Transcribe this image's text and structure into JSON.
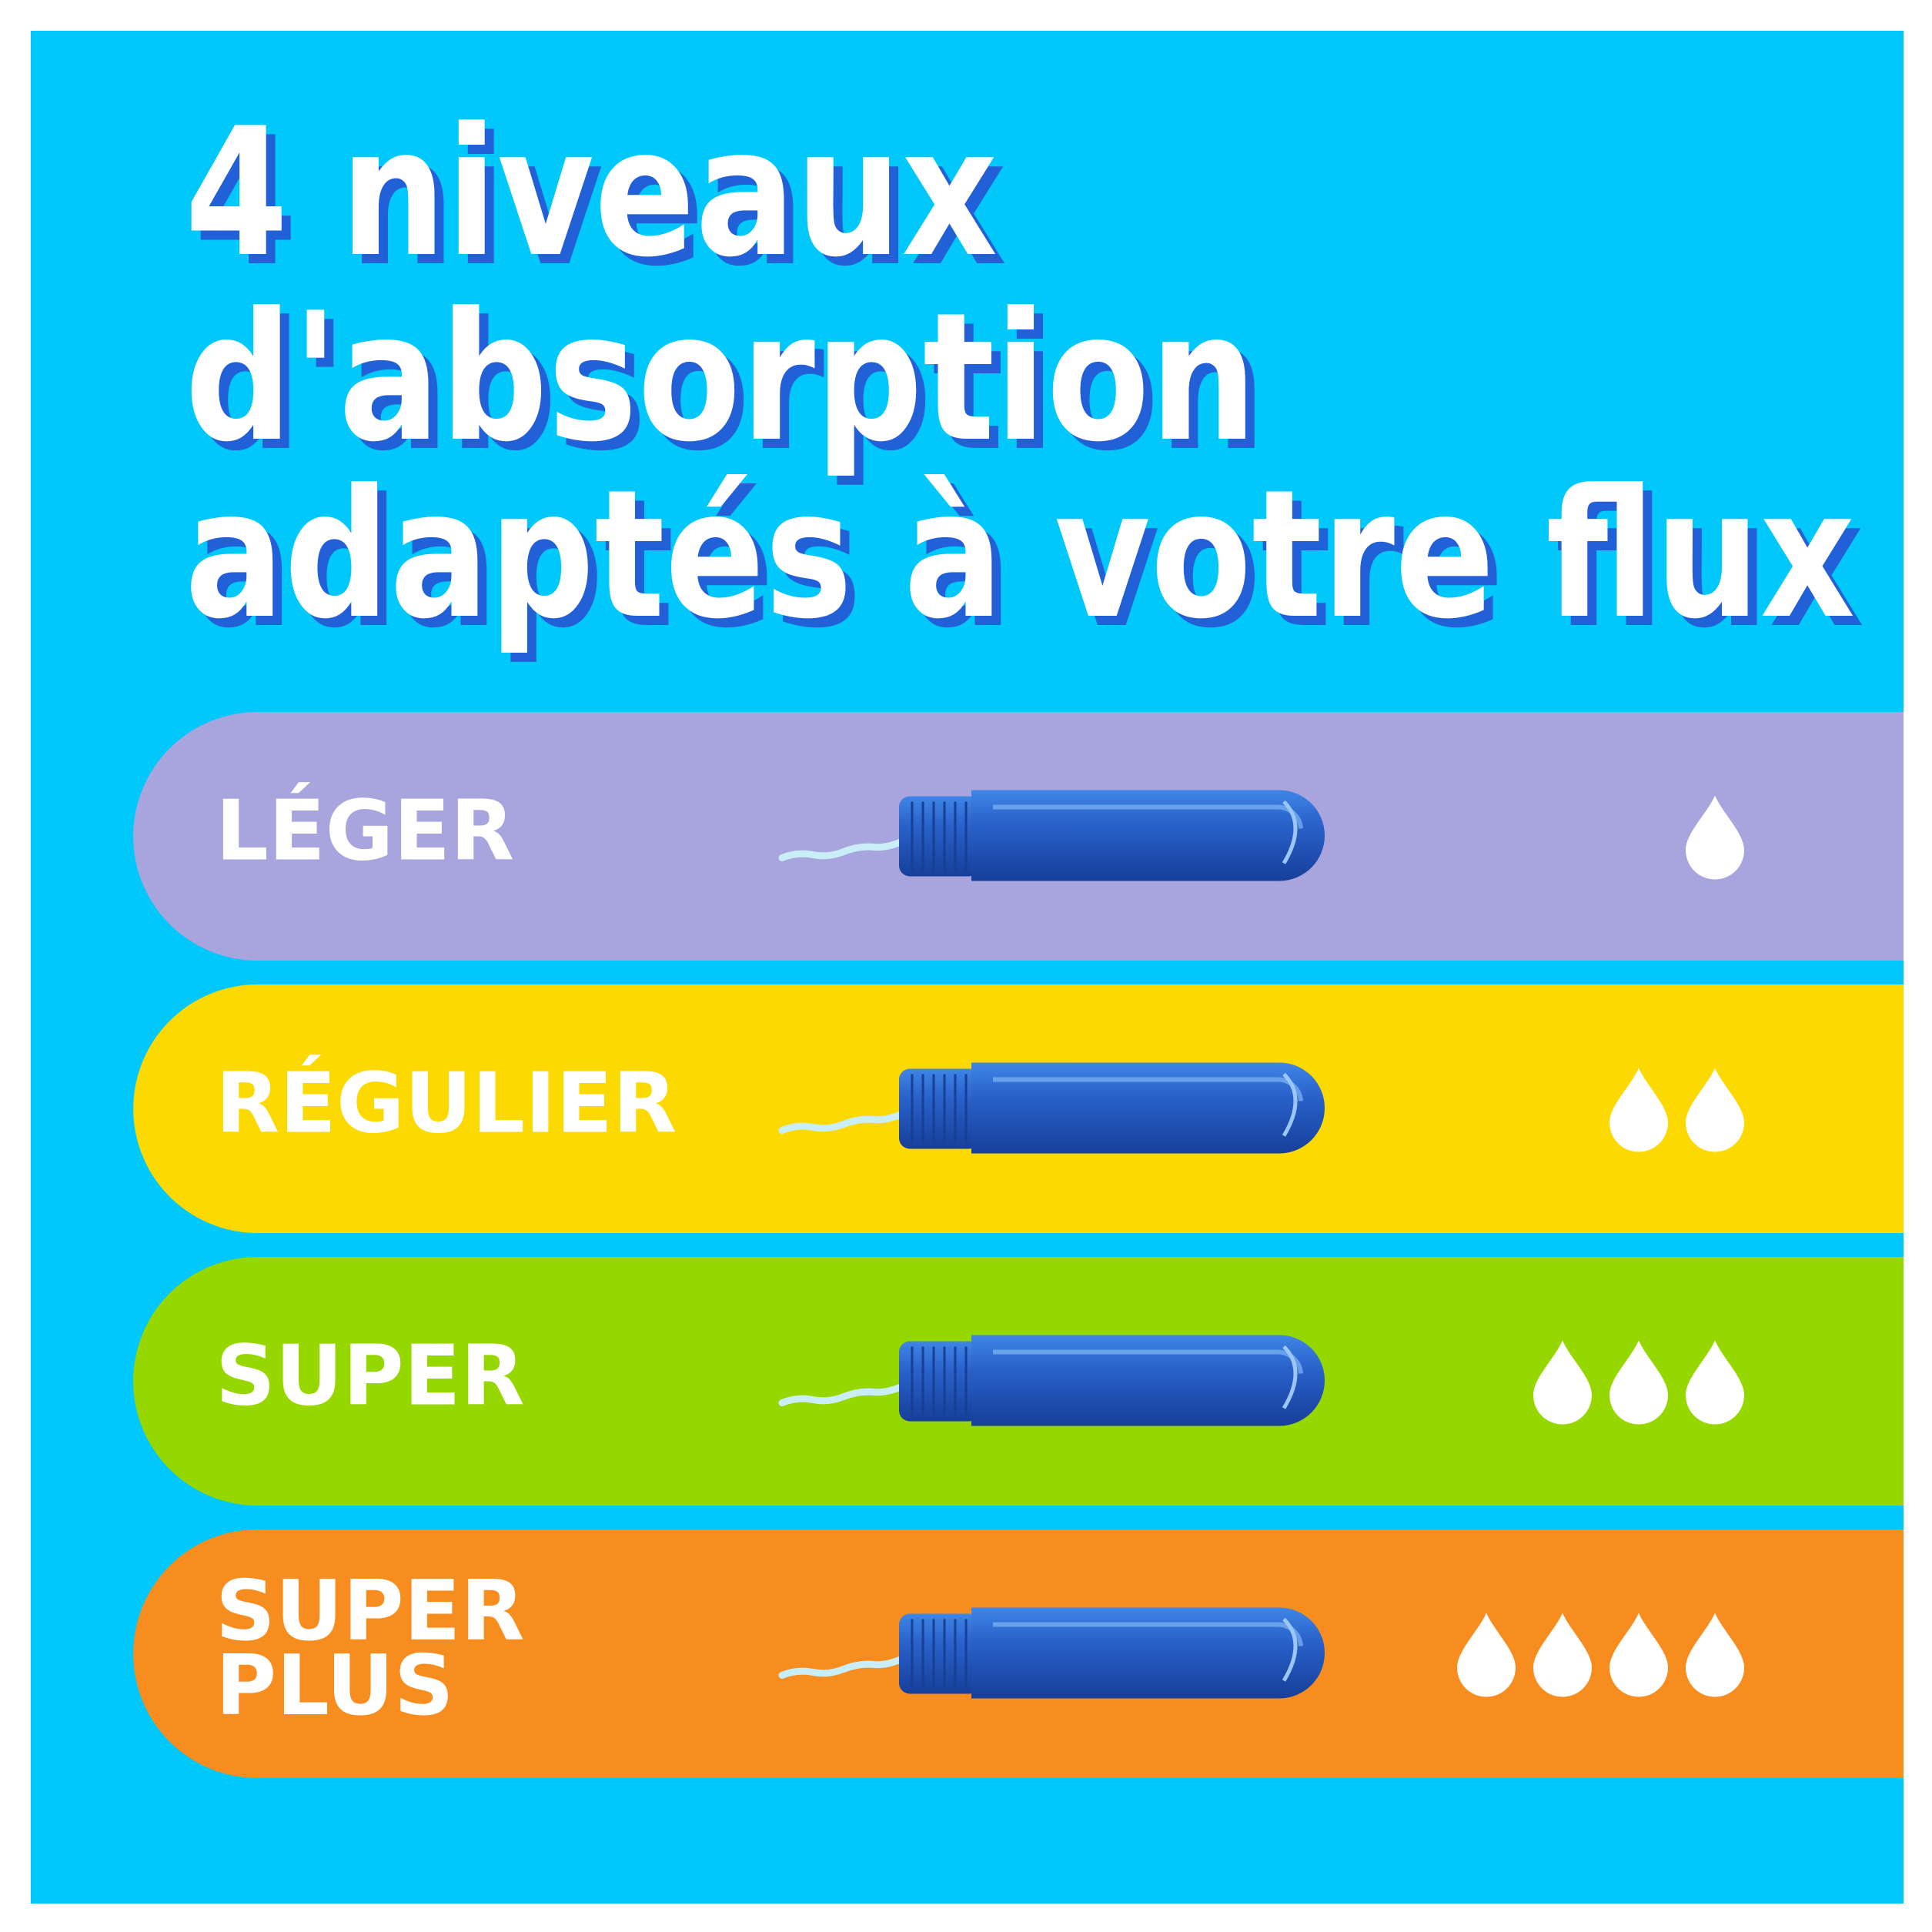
{
  "title_lines": [
    "4 niveaux",
    "d'absorption",
    "adaptés à votre flux"
  ],
  "levels": [
    {
      "label_lines": [
        "LÉGER"
      ],
      "drops": 1,
      "color": "#a8a4dd"
    },
    {
      "label_lines": [
        "RÉGULIER"
      ],
      "drops": 2,
      "color": "#fcd900"
    },
    {
      "label_lines": [
        "SUPER"
      ],
      "drops": 3,
      "color": "#97d700"
    },
    {
      "label_lines": [
        "SUPER",
        "PLUS"
      ],
      "drops": 4,
      "color": "#f78d1f"
    }
  ]
}
